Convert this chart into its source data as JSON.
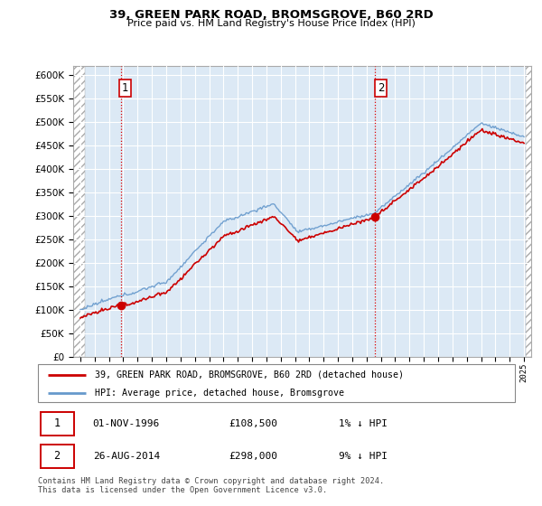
{
  "title": "39, GREEN PARK ROAD, BROMSGROVE, B60 2RD",
  "subtitle": "Price paid vs. HM Land Registry's House Price Index (HPI)",
  "legend_line1": "39, GREEN PARK ROAD, BROMSGROVE, B60 2RD (detached house)",
  "legend_line2": "HPI: Average price, detached house, Bromsgrove",
  "transaction1_date": "01-NOV-1996",
  "transaction1_price": "£108,500",
  "transaction1_hpi": "1% ↓ HPI",
  "transaction2_date": "26-AUG-2014",
  "transaction2_price": "£298,000",
  "transaction2_hpi": "9% ↓ HPI",
  "footer": "Contains HM Land Registry data © Crown copyright and database right 2024.\nThis data is licensed under the Open Government Licence v3.0.",
  "hpi_color": "#6699cc",
  "price_color": "#cc0000",
  "marker_color": "#cc0000",
  "ylim_min": 0,
  "ylim_max": 620000,
  "ytick_values": [
    0,
    50000,
    100000,
    150000,
    200000,
    250000,
    300000,
    350000,
    400000,
    450000,
    500000,
    550000,
    600000
  ],
  "plot_bg_color": "#dce9f5",
  "grid_color": "#ffffff"
}
